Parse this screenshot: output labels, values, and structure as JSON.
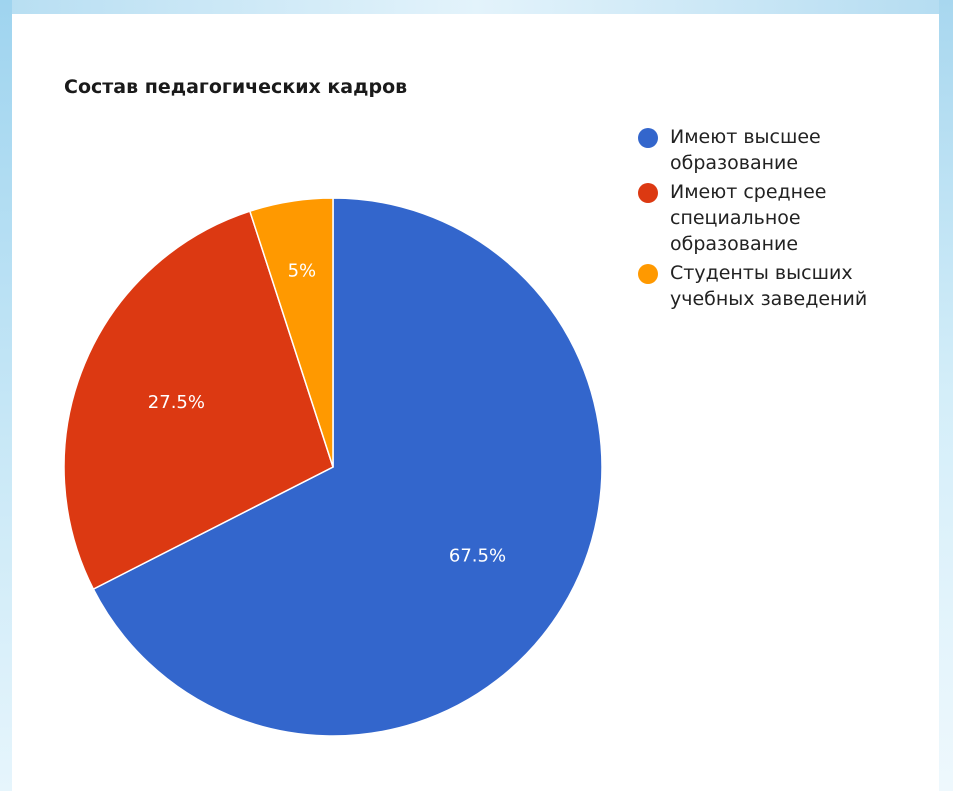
{
  "chart_data": {
    "type": "pie",
    "title": "Состав педагогических кадров",
    "slices": [
      {
        "label": "Имеют высшее образование",
        "value": 67.5,
        "display": "67.5%",
        "color": "#3366cc"
      },
      {
        "label": "Имеют среднее специальное образование",
        "value": 27.5,
        "display": "27.5%",
        "color": "#dc3912"
      },
      {
        "label": "Студенты высших учебных заведений",
        "value": 5,
        "display": "5%",
        "color": "#ff9900"
      }
    ],
    "legend_position": "right",
    "start_angle": "12 o'clock, clockwise"
  }
}
